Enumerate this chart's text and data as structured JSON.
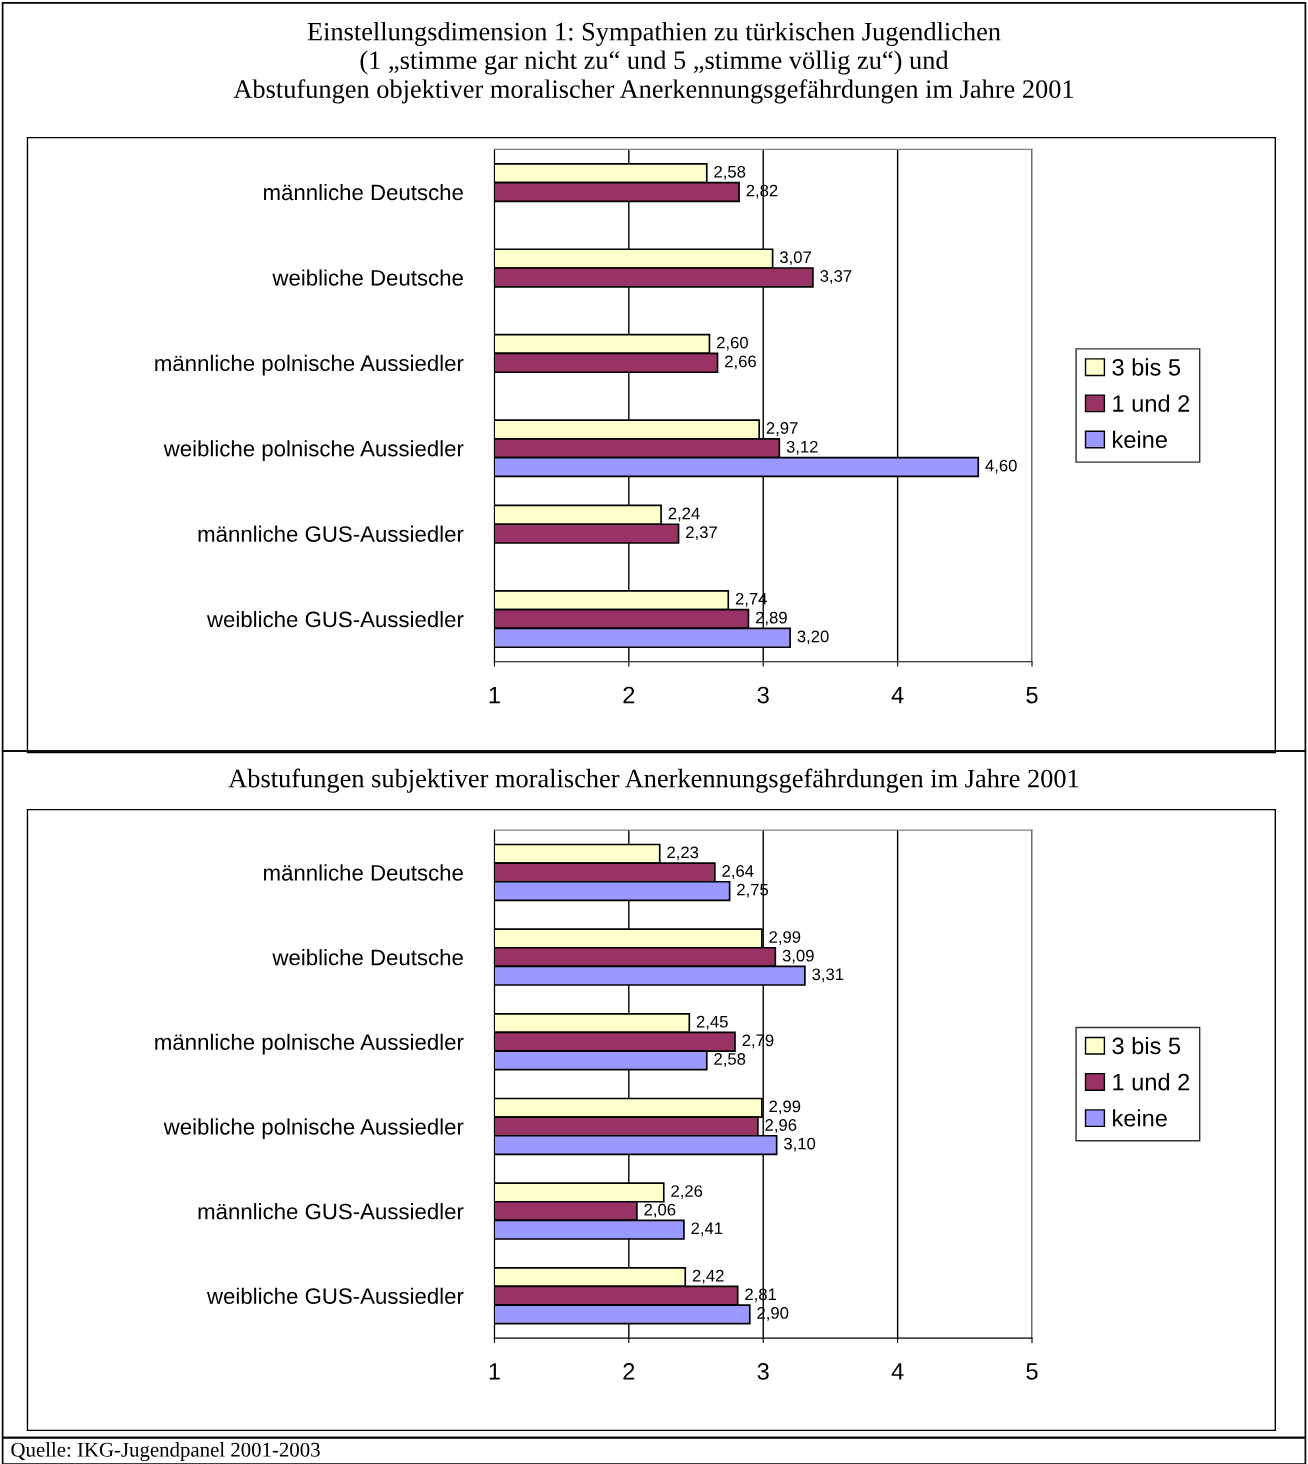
{
  "chart_data": [
    {
      "type": "bar",
      "orientation": "horizontal",
      "title": "Einstellungsdimension 1: Sympathien zu türkischen Jugendlichen\n(1 „stimme gar nicht zu“ und 5 „stimme völlig zu“) und\nAbstufungen objektiver moralischer Anerkennungsgefährdungen im Jahre 2001",
      "categories": [
        "männliche Deutsche",
        "weibliche Deutsche",
        "männliche polnische Aussiedler",
        "weibliche polnische Aussiedler",
        "männliche GUS-Aussiedler",
        "weibliche GUS-Aussiedler"
      ],
      "series": [
        {
          "name": "3 bis 5",
          "color": "#ffffcc",
          "values": [
            2.58,
            3.07,
            2.6,
            2.97,
            2.24,
            2.74
          ],
          "value_labels": [
            "2,58",
            "3,07",
            "2,60",
            "2,97",
            "2,24",
            "2,74"
          ]
        },
        {
          "name": "1 und 2",
          "color": "#993366",
          "values": [
            2.82,
            3.37,
            2.66,
            3.12,
            2.37,
            2.89
          ],
          "value_labels": [
            "2,82",
            "3,37",
            "2,66",
            "3,12",
            "2,37",
            "2,89"
          ]
        },
        {
          "name": "keine",
          "color": "#9999ff",
          "values": [
            null,
            null,
            null,
            4.6,
            null,
            3.2
          ],
          "value_labels": [
            null,
            null,
            null,
            "4,60",
            null,
            "3,20"
          ]
        }
      ],
      "xlim": [
        1,
        5
      ],
      "xticks": [
        1,
        2,
        3,
        4,
        5
      ],
      "grid": "x",
      "legend": "right"
    },
    {
      "type": "bar",
      "orientation": "horizontal",
      "title": "Abstufungen subjektiver moralischer Anerkennungsgefährdungen im Jahre 2001",
      "categories": [
        "männliche Deutsche",
        "weibliche Deutsche",
        "männliche polnische Aussiedler",
        "weibliche polnische Aussiedler",
        "männliche GUS-Aussiedler",
        "weibliche GUS-Aussiedler"
      ],
      "series": [
        {
          "name": "3 bis 5",
          "color": "#ffffcc",
          "values": [
            2.23,
            2.99,
            2.45,
            2.99,
            2.26,
            2.42
          ],
          "value_labels": [
            "2,23",
            "2,99",
            "2,45",
            "2,99",
            "2,26",
            "2,42"
          ]
        },
        {
          "name": "1 und 2",
          "color": "#993366",
          "values": [
            2.64,
            3.09,
            2.79,
            2.96,
            2.06,
            2.81
          ],
          "value_labels": [
            "2,64",
            "3,09",
            "2,79",
            "2,96",
            "2,06",
            "2,81"
          ]
        },
        {
          "name": "keine",
          "color": "#9999ff",
          "values": [
            2.75,
            3.31,
            2.58,
            3.1,
            2.41,
            2.9
          ],
          "value_labels": [
            "2,75",
            "3,31",
            "2,58",
            "3,10",
            "2,41",
            "2,90"
          ]
        }
      ],
      "xlim": [
        1,
        5
      ],
      "xticks": [
        1,
        2,
        3,
        4,
        5
      ],
      "grid": "x",
      "legend": "right",
      "annotations": [
        "Quelle: IKG-Jugendpanel 2001-2003"
      ]
    }
  ]
}
